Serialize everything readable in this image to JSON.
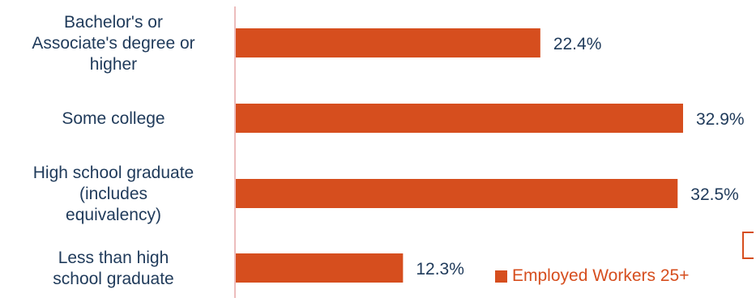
{
  "chart_data": {
    "type": "bar",
    "orientation": "horizontal",
    "categories": [
      "Bachelor's or\nAssociate's degree or\nhigher",
      "Some college",
      "High school graduate\n(includes\nequivalency)",
      "Less than high\nschool graduate"
    ],
    "series": [
      {
        "name": "Employed Workers 25+",
        "values": [
          22.4,
          32.9,
          32.5,
          12.3
        ]
      }
    ],
    "data_labels": [
      "22.4%",
      "32.9%",
      "32.5%",
      "12.3%"
    ],
    "xlim": [
      0,
      35
    ],
    "grid": false,
    "legend_position": "bottom-right"
  },
  "colors": {
    "bar": "#d64e1e",
    "axis": "#e6a6a6",
    "label_text": "#1f3a5a",
    "legend_text": "#d64e1e"
  }
}
